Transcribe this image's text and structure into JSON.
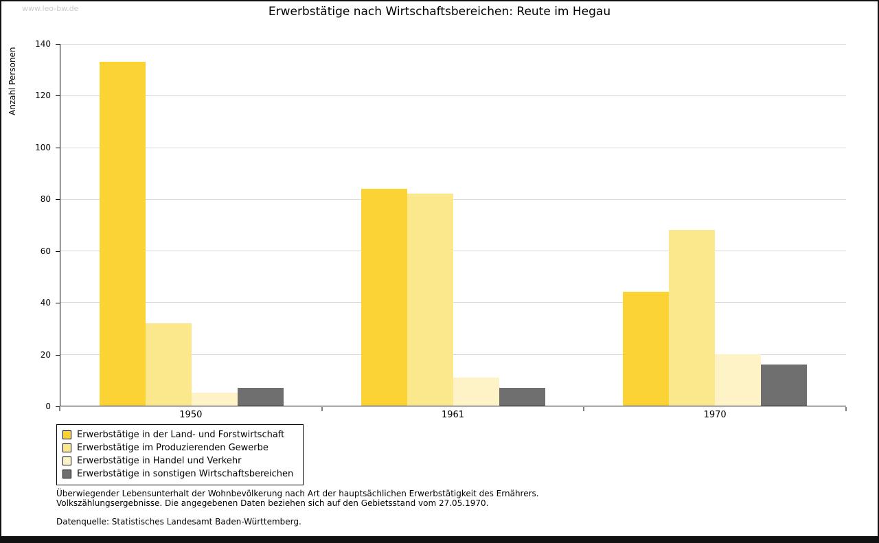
{
  "watermark": "www.leo-bw.de",
  "title": "Erwerbstätige nach Wirtschaftsbereichen: Reute im Hegau",
  "chart_data": {
    "type": "bar",
    "title": "Erwerbstätige nach Wirtschaftsbereichen: Reute im Hegau",
    "xlabel": "",
    "ylabel": "Anzahl Personen",
    "categories": [
      "1950",
      "1961",
      "1970"
    ],
    "series": [
      {
        "name": "Erwerbstätige in der Land- und Forstwirtschaft",
        "color": "#fbd334",
        "values": [
          133,
          84,
          44
        ]
      },
      {
        "name": "Erwerbstätige im Produzierenden Gewerbe",
        "color": "#fce88c",
        "values": [
          32,
          82,
          68
        ]
      },
      {
        "name": "Erwerbstätige in Handel und Verkehr",
        "color": "#fdf3c6",
        "values": [
          5,
          11,
          20
        ]
      },
      {
        "name": "Erwerbstätige in sonstigen Wirtschaftsbereichen",
        "color": "#6f6f6f",
        "values": [
          7,
          7,
          16
        ]
      }
    ],
    "ylim": [
      0,
      140
    ],
    "ytick_step": 20,
    "grid": true,
    "legend_position": "bottom-left"
  },
  "footnotes": {
    "line1": "Überwiegender Lebensunterhalt der Wohnbevölkerung nach Art der hauptsächlichen Erwerbstätigkeit des Ernährers.",
    "line2": "Volkszählungsergebnisse. Die angegebenen Daten beziehen sich auf den Gebietsstand vom 27.05.1970.",
    "source": "Datenquelle: Statistisches Landesamt Baden-Württemberg."
  }
}
